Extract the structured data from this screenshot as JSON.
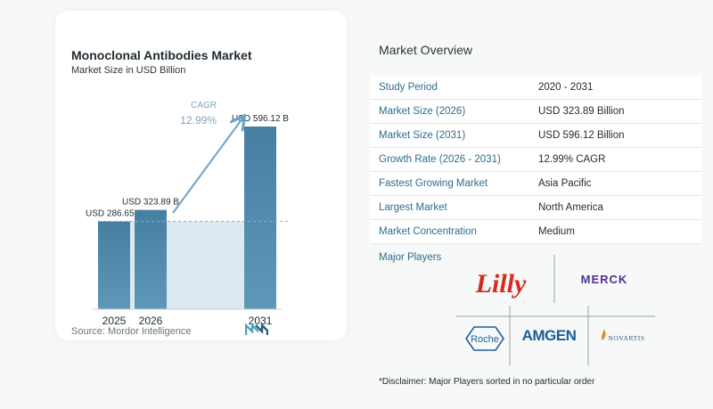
{
  "chart": {
    "title": "Monoclonal Antibodies Market",
    "subtitle": "Market Size in USD Billion",
    "source": "Source:  Mordor Intelligence",
    "cagr_label": "CAGR",
    "cagr_value": "12.99%"
  },
  "chart_data": {
    "type": "bar",
    "title": "Monoclonal Antibodies Market",
    "subtitle": "Market Size in USD Billion",
    "categories": [
      "2025",
      "2026",
      "2031"
    ],
    "values": [
      286.65,
      323.89,
      596.12
    ],
    "data_labels": [
      "USD 286.65 B",
      "USD 323.89 B",
      "USD 596.12 B"
    ],
    "ylim": [
      0,
      596.12
    ],
    "annotation": "CAGR 12.99%",
    "colors": {
      "bar": "#5e97b9",
      "bar_top": "#477fa3",
      "band": "#dde9f1",
      "arrow": "#6ba3c6",
      "cagr_text": "#7fa7bd"
    }
  },
  "overview": {
    "title": "Market Overview",
    "rows": [
      {
        "key": "Study Period",
        "value": "2020 - 2031"
      },
      {
        "key": "Market Size (2026)",
        "value": "USD 323.89 Billion"
      },
      {
        "key": "Market Size (2031)",
        "value": "USD 596.12 Billion"
      },
      {
        "key": "Growth Rate (2026 - 2031)",
        "value": "12.99% CAGR"
      },
      {
        "key": "Fastest Growing Market",
        "value": "Asia Pacific"
      },
      {
        "key": "Largest Market",
        "value": "North America"
      },
      {
        "key": "Market Concentration",
        "value": "Medium"
      }
    ]
  },
  "players": {
    "label": "Major Players",
    "logos": [
      "Lilly",
      "MERCK",
      "Roche",
      "AMGEN",
      "NOVARTIS"
    ]
  },
  "disclaimer": "*Disclaimer: Major Players sorted in no particular order"
}
